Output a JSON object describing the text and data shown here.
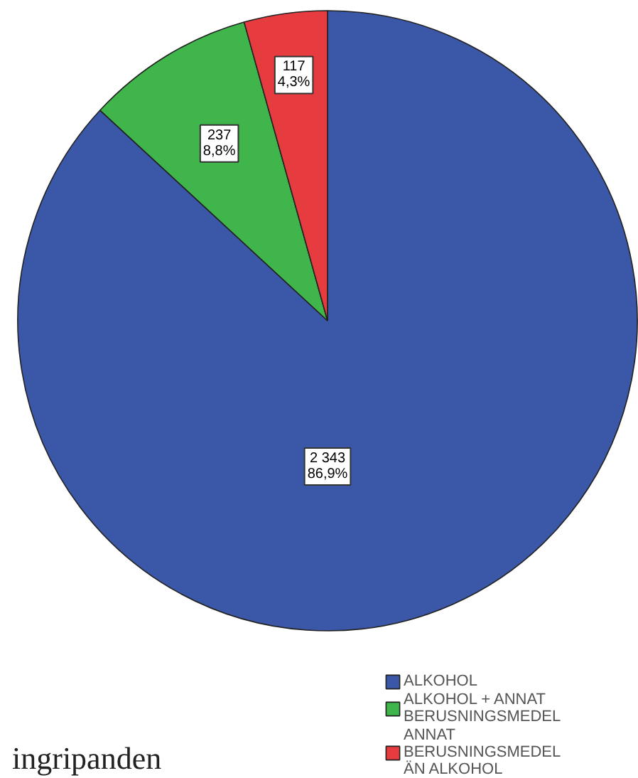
{
  "chart_data": {
    "type": "pie",
    "categories": [
      "ALKOHOL",
      "ALKOHOL + ANNAT BERUSNINGSMEDEL",
      "ANNAT BERUSNINGSMEDEL ÄN ALKOHOL"
    ],
    "values": [
      2343,
      237,
      117
    ],
    "colors": [
      "#3b57a8",
      "#3fb54b",
      "#e63b3f"
    ],
    "value_labels": [
      "2 343\n86,9%",
      "237\n8,8%",
      "117\n4,3%"
    ],
    "legend": "bottom right",
    "annotations": [
      "ingripanden"
    ]
  }
}
